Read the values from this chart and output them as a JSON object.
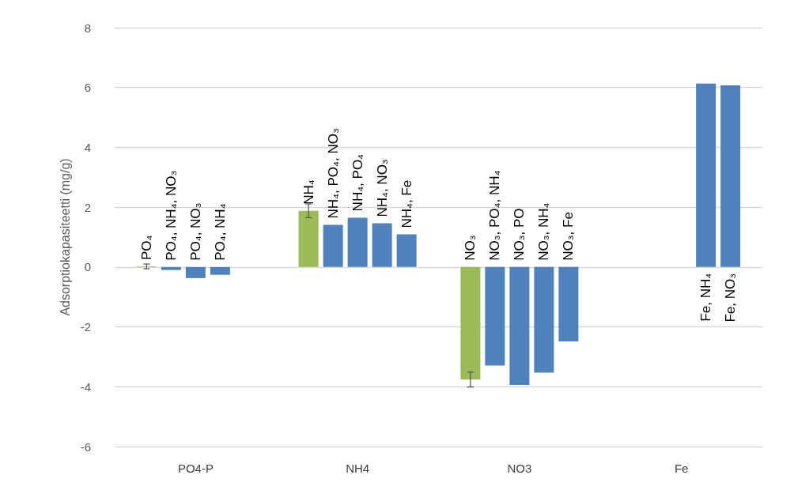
{
  "chart_data": {
    "type": "bar",
    "ylabel": "Adsorptiokapasiteetti (mg/g)",
    "categories": [
      "PO4-P",
      "NH4",
      "NO3",
      "Fe"
    ],
    "series": [
      {
        "color": "#9bbb59",
        "values": [
          0.02,
          1.88,
          -3.76,
          null
        ],
        "errors": [
          0.08,
          0.23,
          0.25,
          null
        ]
      },
      {
        "color": "#4f81bd",
        "values": [
          -0.1,
          1.41,
          -3.29,
          null
        ]
      },
      {
        "color": "#4f81bd",
        "values": [
          -0.37,
          1.65,
          -3.94,
          null
        ]
      },
      {
        "color": "#4f81bd",
        "values": [
          -0.26,
          1.46,
          -3.53,
          6.13
        ]
      },
      {
        "color": "#4f81bd",
        "values": [
          null,
          1.09,
          -2.49,
          6.07
        ]
      }
    ],
    "ylim": [
      -6,
      8
    ],
    "yticks": [
      -6,
      -4,
      -2,
      0,
      2,
      4,
      6,
      8
    ],
    "grid": "y",
    "annotations": [
      "PO₄",
      "PO₄, NH₄, NO₃",
      "PO₄, NO₃",
      "PO₄, NH₄",
      "NH₄",
      "NH₄, PO₄, NO₃",
      "NH₄, PO₄",
      "NH₄, NO₃",
      "NH₄, Fe",
      "NO₃",
      "NO₃, PO₄, NH₄",
      "NO₃, PO",
      "NO₃, NH₄",
      "NO₃, Fe",
      "Fe, NH₄",
      "Fe, NO₃"
    ]
  }
}
